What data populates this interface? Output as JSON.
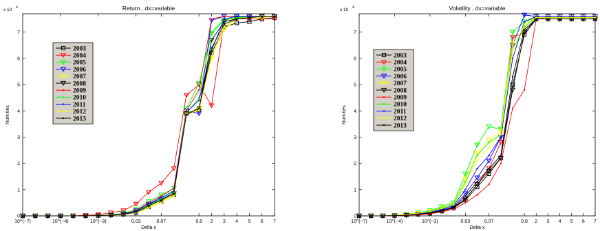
{
  "chart_data": [
    {
      "type": "line",
      "title": "Return , dx=variable",
      "xlabel": "Delta x",
      "ylabel": "Num ties",
      "y_multiplier_label": "x 10",
      "y_multiplier_exponent": "4",
      "ylim": [
        0,
        7.7
      ],
      "y_ticks": [
        "0",
        "1",
        "2",
        "3",
        "4",
        "5",
        "6",
        "7"
      ],
      "x_tick_labels": [
        "10^(−7)",
        "10^(−4)",
        "10^(−3)",
        "0.03",
        "0.07",
        "0.8",
        "2",
        "3",
        "4",
        "5",
        "6",
        "7"
      ],
      "x_tick_indices": [
        0,
        3,
        6,
        9,
        11,
        14,
        15,
        16,
        17,
        18,
        19,
        20
      ],
      "x_count": 21,
      "legend_position": "upper-left",
      "series": [
        {
          "name": "2003",
          "values": [
            0,
            0,
            0,
            0,
            0,
            0,
            0.01,
            0.03,
            0.06,
            0.12,
            0.35,
            0.55,
            0.8,
            3.9,
            4.1,
            6.2,
            7.2,
            7.35,
            7.4,
            7.5,
            7.55
          ]
        },
        {
          "name": "2004",
          "values": [
            0,
            0,
            0,
            0,
            0,
            0.02,
            0.05,
            0.12,
            0.2,
            0.45,
            0.9,
            1.25,
            1.8,
            4.6,
            5.0,
            4.2,
            7.4,
            7.5,
            7.5,
            7.5,
            7.5
          ]
        },
        {
          "name": "2005",
          "values": [
            0,
            0,
            0,
            0,
            0,
            0,
            0.01,
            0.04,
            0.1,
            0.25,
            0.55,
            0.8,
            1.05,
            4.1,
            5.05,
            6.95,
            7.45,
            7.55,
            7.55,
            7.55,
            7.6
          ]
        },
        {
          "name": "2006",
          "values": [
            0,
            0,
            0,
            0,
            0,
            0,
            0.01,
            0.03,
            0.08,
            0.2,
            0.45,
            0.65,
            0.85,
            4.0,
            3.9,
            7.45,
            7.6,
            7.6,
            7.6,
            7.6,
            7.6
          ]
        },
        {
          "name": "2007",
          "values": [
            0,
            0,
            0,
            0,
            0,
            0,
            0.01,
            0.02,
            0.06,
            0.15,
            0.35,
            0.55,
            0.8,
            3.95,
            4.05,
            6.0,
            7.1,
            7.5,
            7.55,
            7.55,
            7.6
          ]
        },
        {
          "name": "2008",
          "values": [
            0,
            0,
            0,
            0,
            0,
            0,
            0.01,
            0.02,
            0.06,
            0.15,
            0.4,
            0.6,
            0.85,
            3.9,
            4.0,
            6.7,
            7.4,
            7.5,
            7.55,
            7.6,
            7.6
          ]
        },
        {
          "name": "2009",
          "values": [
            0,
            0,
            0,
            0,
            0,
            0,
            0.01,
            0.03,
            0.08,
            0.2,
            0.5,
            0.75,
            1.05,
            4.0,
            4.8,
            7.5,
            7.6,
            7.6,
            7.6,
            7.6,
            7.6
          ]
        },
        {
          "name": "2010",
          "values": [
            0,
            0,
            0,
            0,
            0,
            0,
            0.01,
            0.02,
            0.06,
            0.15,
            0.4,
            0.65,
            0.9,
            3.9,
            4.5,
            7.0,
            7.5,
            7.55,
            7.6,
            7.6,
            7.6
          ]
        },
        {
          "name": "2011",
          "values": [
            0,
            0,
            0,
            0,
            0,
            0,
            0.01,
            0.02,
            0.07,
            0.18,
            0.45,
            0.7,
            0.95,
            3.95,
            4.4,
            6.3,
            7.5,
            7.6,
            7.6,
            7.6,
            7.6
          ]
        },
        {
          "name": "2012",
          "values": [
            0,
            0,
            0,
            0,
            0,
            0,
            0.01,
            0.02,
            0.05,
            0.12,
            0.3,
            0.5,
            0.75,
            3.9,
            4.0,
            6.1,
            7.2,
            7.5,
            7.55,
            7.6,
            7.6
          ]
        },
        {
          "name": "2013",
          "values": [
            0,
            0,
            0,
            0,
            0,
            0,
            0.01,
            0.02,
            0.06,
            0.14,
            0.38,
            0.6,
            0.85,
            3.85,
            4.1,
            6.4,
            7.3,
            7.5,
            7.55,
            7.6,
            7.6
          ]
        }
      ]
    },
    {
      "type": "line",
      "title": "Volatility , dx=variable",
      "xlabel": "Delta x",
      "ylabel": "Num ties",
      "y_multiplier_label": "x 10",
      "y_multiplier_exponent": "4",
      "ylim": [
        0,
        7.7
      ],
      "y_ticks": [
        "0",
        "1",
        "2",
        "3",
        "4",
        "5",
        "6",
        "7"
      ],
      "x_tick_labels": [
        "10^(−7)",
        "10^(−4)",
        "10^(−3)",
        "0.03",
        "0.07",
        "0.8",
        "2",
        "3",
        "4",
        "5",
        "6",
        "7"
      ],
      "x_tick_indices": [
        0,
        3,
        6,
        9,
        11,
        14,
        15,
        16,
        17,
        18,
        19,
        20
      ],
      "x_count": 21,
      "legend_position": "upper-left",
      "series": [
        {
          "name": "2003",
          "values": [
            0,
            0,
            0,
            0.01,
            0.03,
            0.06,
            0.1,
            0.18,
            0.3,
            0.6,
            1.1,
            1.6,
            2.2,
            5.0,
            6.9,
            7.5,
            7.5,
            7.5,
            7.5,
            7.5,
            7.5
          ]
        },
        {
          "name": "2004",
          "values": [
            0,
            0,
            0,
            0.01,
            0.03,
            0.06,
            0.1,
            0.2,
            0.3,
            0.65,
            1.2,
            1.8,
            2.8,
            6.8,
            7.0,
            7.5,
            7.5,
            7.5,
            7.5,
            7.5,
            7.5
          ]
        },
        {
          "name": "2005",
          "values": [
            0,
            0,
            0,
            0.02,
            0.06,
            0.12,
            0.2,
            0.35,
            0.5,
            1.6,
            2.7,
            3.4,
            3.3,
            7.0,
            7.4,
            7.55,
            7.55,
            7.55,
            7.55,
            7.55,
            7.55
          ]
        },
        {
          "name": "2006",
          "values": [
            0,
            0,
            0,
            0.01,
            0.03,
            0.06,
            0.12,
            0.22,
            0.35,
            0.85,
            1.45,
            2.1,
            3.0,
            6.5,
            7.65,
            7.6,
            7.6,
            7.6,
            7.6,
            7.6,
            7.6
          ]
        },
        {
          "name": "2007",
          "values": [
            0,
            0,
            0,
            0.02,
            0.05,
            0.1,
            0.18,
            0.3,
            0.45,
            1.4,
            2.4,
            2.9,
            3.2,
            6.55,
            7.2,
            7.55,
            7.55,
            7.55,
            7.55,
            7.55,
            7.55
          ]
        },
        {
          "name": "2008",
          "values": [
            0,
            0,
            0,
            0.01,
            0.03,
            0.06,
            0.1,
            0.18,
            0.3,
            0.65,
            1.2,
            1.7,
            2.2,
            4.8,
            7.0,
            7.5,
            7.5,
            7.5,
            7.5,
            7.5,
            7.5
          ]
        },
        {
          "name": "2009",
          "values": [
            0,
            0,
            0,
            0,
            0.02,
            0.04,
            0.08,
            0.15,
            0.25,
            0.5,
            0.8,
            1.2,
            2.0,
            4.1,
            4.8,
            7.5,
            7.55,
            7.55,
            7.55,
            7.55,
            7.55
          ]
        },
        {
          "name": "2010",
          "values": [
            0,
            0,
            0,
            0.02,
            0.05,
            0.1,
            0.18,
            0.3,
            0.45,
            1.3,
            2.3,
            2.8,
            3.1,
            6.3,
            7.2,
            7.55,
            7.55,
            7.55,
            7.55,
            7.55,
            7.55
          ]
        },
        {
          "name": "2011",
          "values": [
            0,
            0,
            0,
            0.01,
            0.04,
            0.08,
            0.14,
            0.25,
            0.4,
            1.0,
            1.8,
            2.3,
            3.0,
            6.0,
            7.4,
            7.6,
            7.6,
            7.6,
            7.6,
            7.6,
            7.6
          ]
        },
        {
          "name": "2012",
          "values": [
            0,
            0,
            0,
            0.02,
            0.05,
            0.1,
            0.16,
            0.28,
            0.42,
            1.2,
            2.1,
            2.6,
            3.1,
            6.3,
            7.3,
            7.55,
            7.55,
            7.55,
            7.55,
            7.55,
            7.55
          ]
        },
        {
          "name": "2013",
          "values": [
            0,
            0,
            0,
            0.01,
            0.03,
            0.06,
            0.11,
            0.2,
            0.32,
            0.75,
            1.3,
            1.8,
            2.3,
            5.3,
            7.1,
            7.5,
            7.5,
            7.5,
            7.5,
            7.5,
            7.5
          ]
        }
      ]
    }
  ],
  "series_colors": [
    "#000000",
    "#ff0000",
    "#00ff00",
    "#0000ff",
    "#ffff00",
    "#000000",
    "#ff0000",
    "#00ff00",
    "#0000ff",
    "#ffff00",
    "#000000"
  ],
  "series_markers": [
    "square",
    "triangle-down",
    "triangle-down",
    "triangle-down",
    "triangle-down",
    "triangle-down",
    "dot",
    "dot",
    "dot",
    "dot",
    "dot"
  ]
}
